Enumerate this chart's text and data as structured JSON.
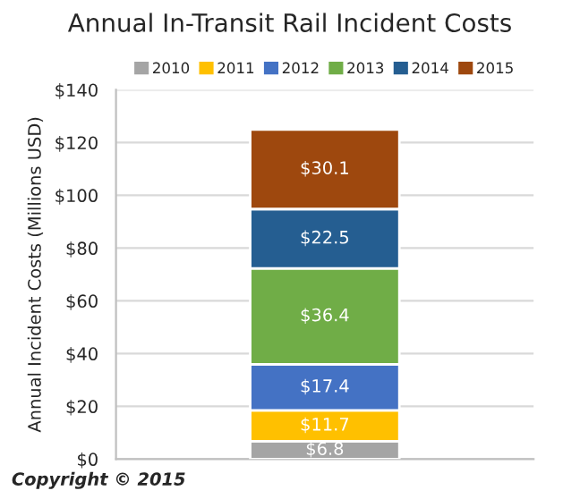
{
  "chart_data": {
    "type": "bar",
    "title": "Annual In-Transit Rail Incident Costs",
    "ylabel": "Annual Incident Costs (Millions USD)",
    "categories": [
      null
    ],
    "stacked": true,
    "series": [
      {
        "name": "2010",
        "color": "#a5a5a5",
        "values": [
          6.8
        ],
        "value_labels": [
          "$6.8"
        ]
      },
      {
        "name": "2011",
        "color": "#ffc000",
        "values": [
          11.7
        ],
        "value_labels": [
          "$11.7"
        ]
      },
      {
        "name": "2012",
        "color": "#4472c4",
        "values": [
          17.4
        ],
        "value_labels": [
          "$17.4"
        ]
      },
      {
        "name": "2013",
        "color": "#70ad47",
        "values": [
          36.4
        ],
        "value_labels": [
          "$36.4"
        ]
      },
      {
        "name": "2014",
        "color": "#255e91",
        "values": [
          22.5
        ],
        "value_labels": [
          "$22.5"
        ]
      },
      {
        "name": "2015",
        "color": "#9e480e",
        "values": [
          30.1
        ],
        "value_labels": [
          "$30.1"
        ]
      }
    ],
    "ylim": [
      0,
      140
    ],
    "yticks": [
      {
        "value": 0,
        "label": "$0"
      },
      {
        "value": 20,
        "label": "$20"
      },
      {
        "value": 40,
        "label": "$40"
      },
      {
        "value": 60,
        "label": "$60"
      },
      {
        "value": 80,
        "label": "$80"
      },
      {
        "value": 100,
        "label": "$100"
      },
      {
        "value": 120,
        "label": "$120"
      },
      {
        "value": 140,
        "label": "$140"
      }
    ],
    "grid": "y",
    "legend": "top",
    "annotations": [
      "Copyright © 2015"
    ]
  }
}
